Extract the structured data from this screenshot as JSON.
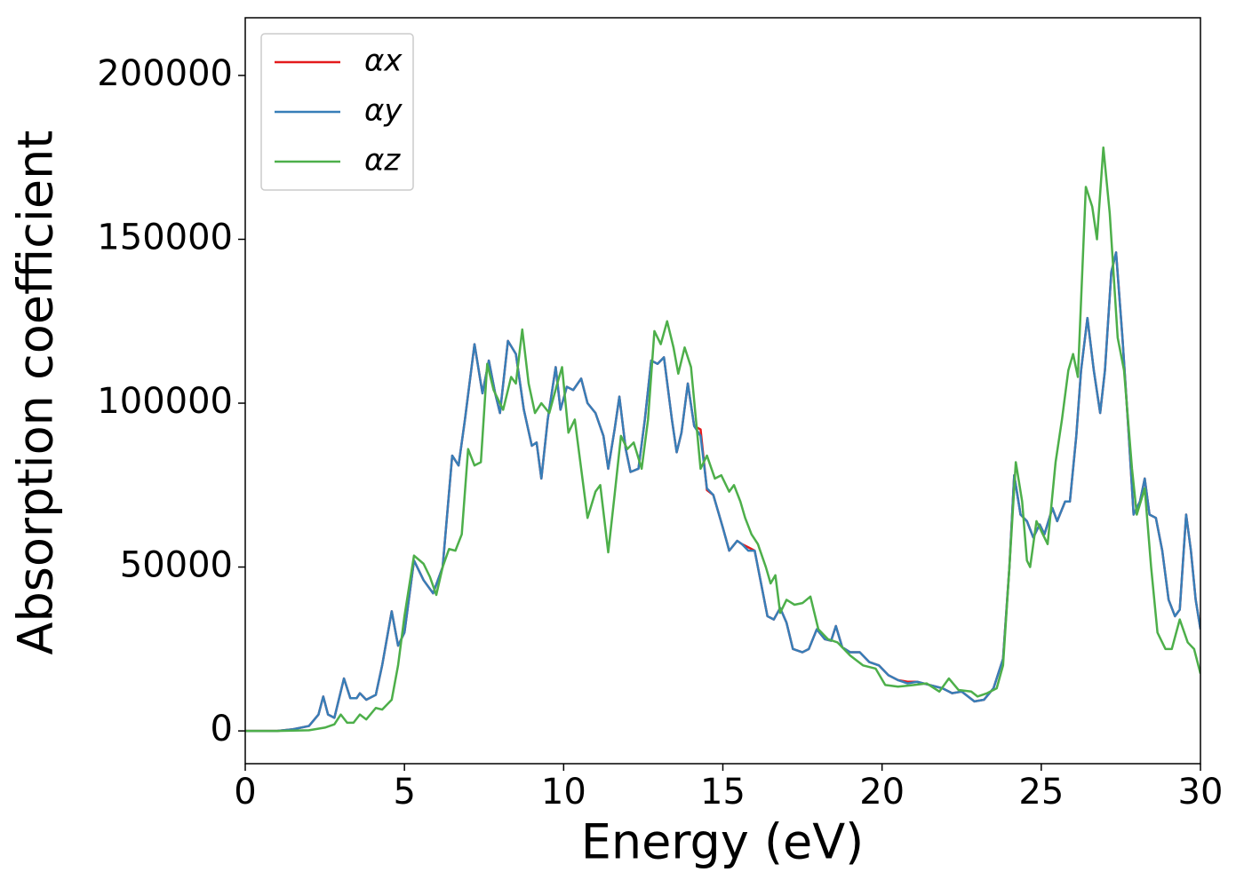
{
  "chart_data": {
    "type": "line",
    "xlabel": "Energy (eV)",
    "ylabel": "Absorption coefficient",
    "xlim": [
      0,
      30
    ],
    "xticks": [
      0,
      5,
      10,
      15,
      20,
      25,
      30
    ],
    "ylim": [
      -10000,
      217600
    ],
    "yticks": [
      0,
      50000,
      100000,
      150000,
      200000
    ],
    "grid": false,
    "legend": "upper left",
    "series": [
      {
        "name": "αx",
        "color": "#e41a1c",
        "x": [
          0,
          1,
          1.5,
          2,
          2.3,
          2.45,
          2.6,
          2.8,
          3.1,
          3.3,
          3.5,
          3.6,
          3.8,
          4.1,
          4.3,
          4.6,
          4.8,
          5.0,
          5.3,
          5.6,
          5.9,
          6.2,
          6.5,
          6.7,
          6.9,
          7.2,
          7.45,
          7.65,
          7.85,
          8.0,
          8.25,
          8.5,
          8.75,
          9.0,
          9.15,
          9.3,
          9.5,
          9.75,
          9.9,
          10.1,
          10.3,
          10.55,
          10.75,
          11.0,
          11.25,
          11.4,
          11.6,
          11.75,
          11.95,
          12.1,
          12.35,
          12.55,
          12.75,
          12.95,
          13.15,
          13.4,
          13.55,
          13.7,
          13.9,
          14.1,
          14.3,
          14.5,
          14.7,
          15.0,
          15.2,
          15.45,
          15.6,
          15.8,
          16.0,
          16.2,
          16.4,
          16.6,
          16.8,
          17.0,
          17.2,
          17.5,
          17.7,
          17.95,
          18.2,
          18.4,
          18.55,
          18.75,
          19.0,
          19.3,
          19.6,
          19.9,
          20.2,
          20.5,
          20.8,
          21.1,
          21.5,
          21.9,
          22.2,
          22.5,
          22.9,
          23.2,
          23.5,
          23.8,
          24.0,
          24.15,
          24.35,
          24.55,
          24.75,
          24.95,
          25.1,
          25.35,
          25.5,
          25.75,
          25.9,
          26.1,
          26.25,
          26.45,
          26.65,
          26.85,
          27.0,
          27.2,
          27.35,
          27.55,
          27.75,
          27.9,
          28.1,
          28.25,
          28.4,
          28.6,
          28.8,
          29.0,
          29.2,
          29.35,
          29.55,
          29.7,
          29.85,
          30
        ],
        "values": [
          0,
          0,
          500,
          1500,
          5000,
          10500,
          5000,
          4000,
          16000,
          10000,
          10000,
          11500,
          9500,
          11000,
          20000,
          36500,
          26000,
          30000,
          52000,
          46000,
          42000,
          50000,
          84000,
          81000,
          95000,
          118000,
          103000,
          113000,
          103000,
          97000,
          119000,
          115000,
          98000,
          87000,
          88000,
          77000,
          95000,
          111000,
          98000,
          105000,
          104000,
          107500,
          100000,
          97000,
          90000,
          80000,
          92000,
          102000,
          86000,
          79000,
          80000,
          95000,
          113000,
          112000,
          114000,
          95000,
          85000,
          91000,
          106000,
          93000,
          92000,
          73500,
          72000,
          62000,
          55000,
          58000,
          57000,
          56000,
          55000,
          45000,
          35000,
          34000,
          37500,
          33000,
          25000,
          24000,
          25000,
          31000,
          28000,
          27500,
          32000,
          25500,
          24000,
          24000,
          21000,
          20000,
          17000,
          15500,
          15000,
          15000,
          14000,
          13000,
          11500,
          12000,
          9000,
          9500,
          13000,
          22000,
          50000,
          78000,
          66000,
          64000,
          59000,
          63000,
          60000,
          68000,
          64000,
          70000,
          70000,
          90000,
          110000,
          126000,
          110000,
          97000,
          110000,
          140000,
          146000,
          120000,
          90000,
          66000,
          70000,
          77000,
          66000,
          65000,
          55000,
          40000,
          35000,
          37000,
          66000,
          55000,
          40000,
          31000
        ]
      },
      {
        "name": "αy",
        "color": "#377eb8",
        "x": [
          0,
          1,
          1.5,
          2,
          2.3,
          2.45,
          2.6,
          2.8,
          3.1,
          3.3,
          3.5,
          3.6,
          3.8,
          4.1,
          4.3,
          4.6,
          4.8,
          5.0,
          5.3,
          5.6,
          5.9,
          6.2,
          6.5,
          6.7,
          6.9,
          7.2,
          7.45,
          7.65,
          7.85,
          8.0,
          8.25,
          8.5,
          8.75,
          9.0,
          9.15,
          9.3,
          9.5,
          9.75,
          9.9,
          10.1,
          10.3,
          10.55,
          10.75,
          11.0,
          11.25,
          11.4,
          11.6,
          11.75,
          11.95,
          12.1,
          12.35,
          12.55,
          12.75,
          12.95,
          13.15,
          13.4,
          13.55,
          13.7,
          13.9,
          14.1,
          14.3,
          14.5,
          14.7,
          15.0,
          15.2,
          15.45,
          15.6,
          15.8,
          16.0,
          16.2,
          16.4,
          16.6,
          16.8,
          17.0,
          17.2,
          17.5,
          17.7,
          17.95,
          18.2,
          18.4,
          18.55,
          18.75,
          19.0,
          19.3,
          19.6,
          19.9,
          20.2,
          20.5,
          20.8,
          21.1,
          21.5,
          21.9,
          22.2,
          22.5,
          22.9,
          23.2,
          23.5,
          23.8,
          24.0,
          24.15,
          24.35,
          24.55,
          24.75,
          24.95,
          25.1,
          25.35,
          25.5,
          25.75,
          25.9,
          26.1,
          26.25,
          26.45,
          26.65,
          26.85,
          27.0,
          27.2,
          27.35,
          27.55,
          27.75,
          27.9,
          28.1,
          28.25,
          28.4,
          28.6,
          28.8,
          29.0,
          29.2,
          29.35,
          29.55,
          29.7,
          29.85,
          30
        ],
        "values": [
          0,
          0,
          500,
          1500,
          5000,
          10500,
          5000,
          4000,
          16000,
          10000,
          10000,
          11500,
          9500,
          11000,
          20000,
          36500,
          26000,
          30000,
          52000,
          46000,
          42000,
          50000,
          84000,
          81000,
          95000,
          118000,
          103000,
          113000,
          103000,
          97000,
          119000,
          115000,
          98000,
          87000,
          88000,
          77000,
          95000,
          111000,
          98000,
          105000,
          104000,
          107500,
          100000,
          97000,
          90000,
          80000,
          92000,
          102000,
          86000,
          79000,
          80000,
          95000,
          113000,
          112000,
          114000,
          95000,
          85000,
          91000,
          106000,
          93000,
          90000,
          74000,
          72000,
          62000,
          55000,
          58000,
          57000,
          55000,
          55000,
          45000,
          35000,
          34000,
          37500,
          33000,
          25000,
          24000,
          25000,
          31000,
          28000,
          27500,
          32000,
          25500,
          24000,
          24000,
          21000,
          20000,
          17000,
          15500,
          14500,
          15000,
          14000,
          13000,
          11500,
          12000,
          9000,
          9500,
          13000,
          22000,
          50000,
          78000,
          66000,
          64000,
          59000,
          63000,
          60000,
          68000,
          64000,
          70000,
          70000,
          90000,
          110000,
          126000,
          110000,
          97000,
          110000,
          140000,
          146000,
          120000,
          90000,
          66000,
          70000,
          77000,
          66000,
          65000,
          55000,
          40000,
          35000,
          37000,
          66000,
          55000,
          40000,
          31000
        ]
      },
      {
        "name": "αz",
        "color": "#4daf4a",
        "x": [
          0,
          1,
          2,
          2.5,
          2.8,
          3.0,
          3.2,
          3.4,
          3.6,
          3.8,
          4.1,
          4.3,
          4.6,
          4.8,
          5.0,
          5.3,
          5.6,
          5.8,
          6.0,
          6.2,
          6.4,
          6.6,
          6.8,
          7.0,
          7.2,
          7.4,
          7.6,
          7.8,
          8.1,
          8.35,
          8.5,
          8.7,
          8.9,
          9.1,
          9.3,
          9.55,
          9.8,
          9.95,
          10.15,
          10.35,
          10.55,
          10.75,
          11.0,
          11.15,
          11.4,
          11.6,
          11.8,
          12.0,
          12.2,
          12.45,
          12.65,
          12.85,
          13.05,
          13.25,
          13.45,
          13.6,
          13.8,
          14.0,
          14.3,
          14.5,
          14.75,
          14.95,
          15.2,
          15.35,
          15.55,
          15.7,
          15.9,
          16.1,
          16.35,
          16.5,
          16.65,
          16.8,
          17.0,
          17.25,
          17.5,
          17.75,
          18.0,
          18.3,
          18.6,
          19.0,
          19.4,
          19.8,
          20.1,
          20.5,
          21.0,
          21.4,
          21.8,
          22.1,
          22.4,
          22.8,
          23.0,
          23.3,
          23.6,
          23.8,
          24.0,
          24.2,
          24.4,
          24.55,
          24.65,
          24.85,
          25.05,
          25.2,
          25.45,
          25.65,
          25.85,
          26.0,
          26.15,
          26.4,
          26.6,
          26.75,
          26.95,
          27.15,
          27.4,
          27.6,
          27.85,
          28.0,
          28.25,
          28.45,
          28.65,
          28.9,
          29.1,
          29.35,
          29.6,
          29.8,
          30
        ],
        "values": [
          0,
          0,
          200,
          1000,
          2000,
          5000,
          2500,
          2500,
          5000,
          3500,
          7000,
          6500,
          9500,
          20000,
          35000,
          53500,
          51000,
          47000,
          41500,
          50000,
          55500,
          55000,
          60000,
          86000,
          81000,
          82000,
          112000,
          104000,
          98000,
          108000,
          106000,
          122500,
          106000,
          97000,
          100000,
          97000,
          106000,
          111000,
          91000,
          95000,
          80000,
          65000,
          73000,
          75000,
          54500,
          72000,
          90000,
          86000,
          88000,
          80000,
          95000,
          122000,
          118000,
          125000,
          117000,
          109000,
          117000,
          111000,
          80000,
          84000,
          77000,
          78000,
          73000,
          75000,
          70000,
          65000,
          60000,
          57000,
          50000,
          45000,
          47500,
          36000,
          40000,
          38500,
          39000,
          41000,
          31000,
          28000,
          27000,
          23000,
          20000,
          19000,
          14000,
          13500,
          14000,
          14500,
          12000,
          16000,
          12500,
          12000,
          10500,
          11500,
          13000,
          20000,
          50000,
          82000,
          70000,
          52000,
          50000,
          64000,
          60000,
          57000,
          82000,
          95000,
          110000,
          115000,
          108000,
          166000,
          160000,
          150000,
          178000,
          158000,
          120000,
          110000,
          80000,
          66000,
          74000,
          50000,
          30000,
          25000,
          25000,
          34000,
          27000,
          25000,
          17500
        ]
      }
    ]
  }
}
